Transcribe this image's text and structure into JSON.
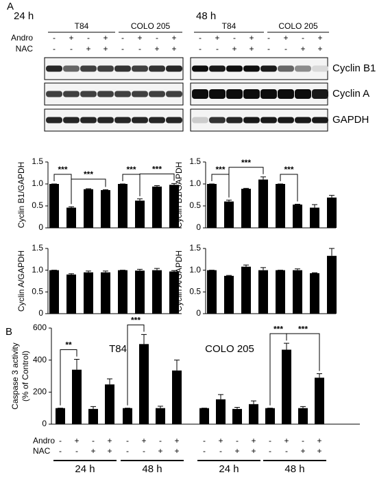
{
  "panel_a": {
    "label": "A",
    "time_labels": [
      "24 h",
      "48 h"
    ],
    "groups": [
      "T84",
      "COLO 205",
      "T84",
      "COLO 205"
    ],
    "row_labels": [
      "Andro",
      "NAC"
    ],
    "andro": [
      "-",
      "+",
      "-",
      "+",
      "-",
      "+",
      "-",
      "+",
      "-",
      "+",
      "-",
      "+",
      "-",
      "+",
      "-",
      "+"
    ],
    "nac": [
      "-",
      "-",
      "+",
      "+",
      "-",
      "-",
      "+",
      "+",
      "-",
      "-",
      "+",
      "+",
      "-",
      "-",
      "+",
      "+"
    ],
    "blot_labels": [
      "Cyclin B1",
      "Cyclin A",
      "GAPDH"
    ]
  },
  "panel_b": {
    "label": "B",
    "row_labels": [
      "Andro",
      "NAC"
    ],
    "andro": [
      "-",
      "+",
      "-",
      "+",
      "-",
      "+",
      "-",
      "+",
      "-",
      "+",
      "-",
      "+",
      "-",
      "+",
      "-",
      "+"
    ],
    "nac": [
      "-",
      "-",
      "+",
      "+",
      "-",
      "-",
      "+",
      "+",
      "-",
      "-",
      "+",
      "+",
      "-",
      "-",
      "+",
      "+"
    ],
    "period_labels": [
      "24 h",
      "48 h",
      "24 h",
      "48 h"
    ]
  },
  "chart_data": [
    {
      "type": "bar",
      "y_label": "Cyclin B1/GAPDH",
      "color": "#000000",
      "ylim": [
        0,
        1.5
      ],
      "yticks": [
        0,
        0.5,
        {
          "value": 1,
          "label": "1.0"
        },
        1.5
      ],
      "values": [
        1.0,
        0.46,
        0.88,
        0.86,
        1.0,
        0.62,
        0.94,
        0.98
      ],
      "errors": [
        0,
        0.02,
        0.01,
        0.01,
        0,
        0.04,
        0.02,
        0.03
      ],
      "annotations": [
        {
          "label": "***",
          "bars": [
            0,
            1
          ]
        },
        {
          "label": "***",
          "bars": [
            1,
            3
          ]
        },
        {
          "label": "***",
          "bars": [
            4,
            5
          ]
        },
        {
          "label": "***",
          "bars": [
            5,
            7
          ]
        }
      ]
    },
    {
      "type": "bar",
      "y_label": "Cyclin B1/GAPDH",
      "color": "#000000",
      "ylim": [
        0,
        1.5
      ],
      "yticks": [
        0,
        0.5,
        {
          "value": 1,
          "label": "1.0"
        },
        1.5
      ],
      "values": [
        1.0,
        0.6,
        0.89,
        1.1,
        1.0,
        0.53,
        0.46,
        0.69
      ],
      "errors": [
        0,
        0.03,
        0.01,
        0.06,
        0,
        0.01,
        0.07,
        0.05
      ],
      "annotations": [
        {
          "label": "***",
          "bars": [
            0,
            1
          ]
        },
        {
          "label": "***",
          "bars": [
            1,
            3
          ]
        },
        {
          "label": "***",
          "bars": [
            4,
            5
          ]
        }
      ]
    },
    {
      "type": "bar",
      "y_label": "Cyclin A/GAPDH",
      "color": "#000000",
      "ylim": [
        0,
        1.5
      ],
      "yticks": [
        0,
        0.5,
        {
          "value": 1,
          "label": "1.0"
        },
        1.5
      ],
      "values": [
        1.0,
        0.9,
        0.95,
        0.95,
        1.0,
        0.99,
        1.0,
        0.97
      ],
      "errors": [
        0,
        0.02,
        0.03,
        0.03,
        0,
        0.03,
        0.04,
        0.02
      ],
      "annotations": []
    },
    {
      "type": "bar",
      "y_label": "Cyclin A/GAPDH",
      "color": "#000000",
      "ylim": [
        0,
        1.5
      ],
      "yticks": [
        0,
        0.5,
        {
          "value": 1,
          "label": "1.0"
        },
        1.5
      ],
      "values": [
        1.0,
        0.87,
        1.08,
        1.0,
        1.0,
        1.0,
        0.93,
        1.33
      ],
      "errors": [
        0,
        0.01,
        0.04,
        0.06,
        0,
        0.03,
        0.01,
        0.17
      ],
      "annotations": []
    },
    {
      "type": "bar",
      "y_label": [
        "Caspase 3 activity",
        "(% of Control)"
      ],
      "color": "#000000",
      "ylim": [
        0,
        600
      ],
      "yticks": [
        0,
        200,
        400,
        600
      ],
      "group_labels": [
        "T84",
        "COLO 205"
      ],
      "values": [
        100,
        340,
        95,
        248,
        100,
        500,
        100,
        335,
        100,
        155,
        95,
        125,
        100,
        465,
        100,
        290
      ],
      "errors": [
        0,
        65,
        15,
        35,
        0,
        60,
        12,
        65,
        0,
        30,
        10,
        20,
        0,
        40,
        10,
        25
      ],
      "annotations": [
        {
          "label": "**",
          "bars": [
            0,
            1
          ]
        },
        {
          "label": "***",
          "bars": [
            4,
            5
          ]
        },
        {
          "label": "***",
          "bars": [
            12,
            13
          ]
        },
        {
          "label": "***",
          "bars": [
            13,
            15
          ]
        }
      ]
    }
  ]
}
